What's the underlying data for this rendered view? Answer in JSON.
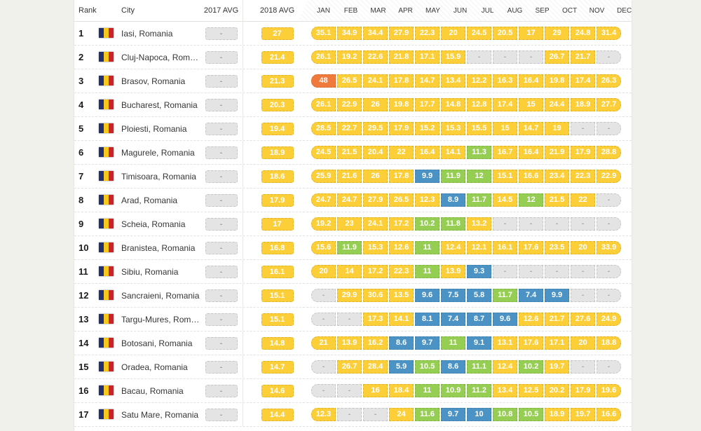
{
  "table": {
    "columns": {
      "rank": "Rank",
      "city": "City",
      "avg2017": "2017 AVG",
      "avg2018": "2018 AVG"
    },
    "months": [
      "JAN",
      "FEB",
      "MAR",
      "APR",
      "MAY",
      "JUN",
      "JUL",
      "AUG",
      "SEP",
      "OCT",
      "NOV",
      "DEC"
    ],
    "colors": {
      "yellow": "#fccf39",
      "green": "#95ce52",
      "blue": "#4a93c4",
      "orange": "#f0793c",
      "empty": "#e4e4e4"
    },
    "empty_label": "-",
    "rows": [
      {
        "rank": "1",
        "city": "Iasi, Romania",
        "avg2017": "-",
        "avg2018": "27",
        "cells": [
          [
            "35.1",
            "y"
          ],
          [
            "34.9",
            "y"
          ],
          [
            "34.4",
            "y"
          ],
          [
            "27.9",
            "y"
          ],
          [
            "22.3",
            "y"
          ],
          [
            "20",
            "y"
          ],
          [
            "24.5",
            "y"
          ],
          [
            "20.5",
            "y"
          ],
          [
            "17",
            "y"
          ],
          [
            "29",
            "y"
          ],
          [
            "24.8",
            "y"
          ],
          [
            "31.4",
            "y"
          ]
        ]
      },
      {
        "rank": "2",
        "city": "Cluj-Napoca, Roma...",
        "avg2017": "-",
        "avg2018": "21.4",
        "cells": [
          [
            "26.1",
            "y"
          ],
          [
            "19.2",
            "y"
          ],
          [
            "22.6",
            "y"
          ],
          [
            "21.8",
            "y"
          ],
          [
            "17.1",
            "y"
          ],
          [
            "15.9",
            "y"
          ],
          [
            "-",
            "e"
          ],
          [
            "-",
            "e"
          ],
          [
            "-",
            "e"
          ],
          [
            "26.7",
            "y"
          ],
          [
            "21.7",
            "y"
          ],
          [
            "-",
            "e"
          ]
        ]
      },
      {
        "rank": "3",
        "city": "Brasov, Romania",
        "avg2017": "-",
        "avg2018": "21.3",
        "cells": [
          [
            "48",
            "o"
          ],
          [
            "26.5",
            "y"
          ],
          [
            "24.1",
            "y"
          ],
          [
            "17.8",
            "y"
          ],
          [
            "14.7",
            "y"
          ],
          [
            "13.4",
            "y"
          ],
          [
            "12.2",
            "y"
          ],
          [
            "16.3",
            "y"
          ],
          [
            "16.4",
            "y"
          ],
          [
            "19.8",
            "y"
          ],
          [
            "17.4",
            "y"
          ],
          [
            "26.3",
            "y"
          ]
        ]
      },
      {
        "rank": "4",
        "city": "Bucharest, Romania",
        "avg2017": "-",
        "avg2018": "20.3",
        "cells": [
          [
            "26.1",
            "y"
          ],
          [
            "22.9",
            "y"
          ],
          [
            "26",
            "y"
          ],
          [
            "19.8",
            "y"
          ],
          [
            "17.7",
            "y"
          ],
          [
            "14.8",
            "y"
          ],
          [
            "12.8",
            "y"
          ],
          [
            "17.4",
            "y"
          ],
          [
            "15",
            "y"
          ],
          [
            "24.4",
            "y"
          ],
          [
            "18.9",
            "y"
          ],
          [
            "27.7",
            "y"
          ]
        ]
      },
      {
        "rank": "5",
        "city": "Ploiesti, Romania",
        "avg2017": "-",
        "avg2018": "19.4",
        "cells": [
          [
            "28.5",
            "y"
          ],
          [
            "22.7",
            "y"
          ],
          [
            "29.5",
            "y"
          ],
          [
            "17.9",
            "y"
          ],
          [
            "15.2",
            "y"
          ],
          [
            "15.3",
            "y"
          ],
          [
            "15.5",
            "y"
          ],
          [
            "15",
            "y"
          ],
          [
            "14.7",
            "y"
          ],
          [
            "19",
            "y"
          ],
          [
            "-",
            "e"
          ],
          [
            "-",
            "e"
          ]
        ]
      },
      {
        "rank": "6",
        "city": "Magurele, Romania",
        "avg2017": "-",
        "avg2018": "18.9",
        "cells": [
          [
            "24.5",
            "y"
          ],
          [
            "21.5",
            "y"
          ],
          [
            "20.4",
            "y"
          ],
          [
            "22",
            "y"
          ],
          [
            "16.4",
            "y"
          ],
          [
            "14.1",
            "y"
          ],
          [
            "11.3",
            "g"
          ],
          [
            "16.7",
            "y"
          ],
          [
            "16.4",
            "y"
          ],
          [
            "21.9",
            "y"
          ],
          [
            "17.9",
            "y"
          ],
          [
            "28.8",
            "y"
          ]
        ]
      },
      {
        "rank": "7",
        "city": "Timisoara, Romania",
        "avg2017": "-",
        "avg2018": "18.6",
        "cells": [
          [
            "25.9",
            "y"
          ],
          [
            "21.6",
            "y"
          ],
          [
            "26",
            "y"
          ],
          [
            "17.8",
            "y"
          ],
          [
            "9.9",
            "b"
          ],
          [
            "11.9",
            "g"
          ],
          [
            "12",
            "g"
          ],
          [
            "15.1",
            "y"
          ],
          [
            "16.6",
            "y"
          ],
          [
            "23.4",
            "y"
          ],
          [
            "22.3",
            "y"
          ],
          [
            "22.9",
            "y"
          ]
        ]
      },
      {
        "rank": "8",
        "city": "Arad, Romania",
        "avg2017": "-",
        "avg2018": "17.9",
        "cells": [
          [
            "24.7",
            "y"
          ],
          [
            "24.7",
            "y"
          ],
          [
            "27.9",
            "y"
          ],
          [
            "26.5",
            "y"
          ],
          [
            "12.3",
            "y"
          ],
          [
            "8.9",
            "b"
          ],
          [
            "11.7",
            "g"
          ],
          [
            "14.5",
            "y"
          ],
          [
            "12",
            "g"
          ],
          [
            "21.5",
            "y"
          ],
          [
            "22",
            "y"
          ],
          [
            "-",
            "e"
          ]
        ]
      },
      {
        "rank": "9",
        "city": "Scheia, Romania",
        "avg2017": "-",
        "avg2018": "17",
        "cells": [
          [
            "19.2",
            "y"
          ],
          [
            "23",
            "y"
          ],
          [
            "24.1",
            "y"
          ],
          [
            "17.2",
            "y"
          ],
          [
            "10.2",
            "g"
          ],
          [
            "11.8",
            "g"
          ],
          [
            "13.2",
            "y"
          ],
          [
            "-",
            "e"
          ],
          [
            "-",
            "e"
          ],
          [
            "-",
            "e"
          ],
          [
            "-",
            "e"
          ],
          [
            "-",
            "e"
          ]
        ]
      },
      {
        "rank": "10",
        "city": "Branistea, Romania",
        "avg2017": "-",
        "avg2018": "16.8",
        "cells": [
          [
            "15.6",
            "y"
          ],
          [
            "11.9",
            "g"
          ],
          [
            "15.3",
            "y"
          ],
          [
            "12.6",
            "y"
          ],
          [
            "11",
            "g"
          ],
          [
            "12.4",
            "y"
          ],
          [
            "12.1",
            "y"
          ],
          [
            "16.1",
            "y"
          ],
          [
            "17.6",
            "y"
          ],
          [
            "23.5",
            "y"
          ],
          [
            "20",
            "y"
          ],
          [
            "33.9",
            "y"
          ]
        ]
      },
      {
        "rank": "11",
        "city": "Sibiu, Romania",
        "avg2017": "-",
        "avg2018": "16.1",
        "cells": [
          [
            "20",
            "y"
          ],
          [
            "14",
            "y"
          ],
          [
            "17.2",
            "y"
          ],
          [
            "22.3",
            "y"
          ],
          [
            "11",
            "g"
          ],
          [
            "13.9",
            "y"
          ],
          [
            "9.3",
            "b"
          ],
          [
            "-",
            "e"
          ],
          [
            "-",
            "e"
          ],
          [
            "-",
            "e"
          ],
          [
            "-",
            "e"
          ],
          [
            "-",
            "e"
          ]
        ]
      },
      {
        "rank": "12",
        "city": "Sancraieni, Romania",
        "avg2017": "-",
        "avg2018": "15.1",
        "cells": [
          [
            "-",
            "e"
          ],
          [
            "29.9",
            "y"
          ],
          [
            "30.6",
            "y"
          ],
          [
            "13.5",
            "y"
          ],
          [
            "9.6",
            "b"
          ],
          [
            "7.5",
            "b"
          ],
          [
            "5.8",
            "b"
          ],
          [
            "11.7",
            "g"
          ],
          [
            "7.4",
            "b"
          ],
          [
            "9.9",
            "b"
          ],
          [
            "-",
            "e"
          ],
          [
            "-",
            "e"
          ]
        ]
      },
      {
        "rank": "13",
        "city": "Targu-Mures, Roma...",
        "avg2017": "-",
        "avg2018": "15.1",
        "cells": [
          [
            "-",
            "e"
          ],
          [
            "-",
            "e"
          ],
          [
            "17.3",
            "y"
          ],
          [
            "14.1",
            "y"
          ],
          [
            "8.1",
            "b"
          ],
          [
            "7.4",
            "b"
          ],
          [
            "8.7",
            "b"
          ],
          [
            "9.6",
            "b"
          ],
          [
            "12.6",
            "y"
          ],
          [
            "21.7",
            "y"
          ],
          [
            "27.6",
            "y"
          ],
          [
            "24.9",
            "y"
          ]
        ]
      },
      {
        "rank": "14",
        "city": "Botosani, Romania",
        "avg2017": "-",
        "avg2018": "14.8",
        "cells": [
          [
            "21",
            "y"
          ],
          [
            "13.9",
            "y"
          ],
          [
            "16.2",
            "y"
          ],
          [
            "8.6",
            "b"
          ],
          [
            "9.7",
            "b"
          ],
          [
            "11",
            "g"
          ],
          [
            "9.1",
            "b"
          ],
          [
            "13.1",
            "y"
          ],
          [
            "17.6",
            "y"
          ],
          [
            "17.1",
            "y"
          ],
          [
            "20",
            "y"
          ],
          [
            "18.8",
            "y"
          ]
        ]
      },
      {
        "rank": "15",
        "city": "Oradea, Romania",
        "avg2017": "-",
        "avg2018": "14.7",
        "cells": [
          [
            "-",
            "e"
          ],
          [
            "26.7",
            "y"
          ],
          [
            "28.4",
            "y"
          ],
          [
            "5.9",
            "b"
          ],
          [
            "10.5",
            "g"
          ],
          [
            "8.6",
            "b"
          ],
          [
            "11.1",
            "g"
          ],
          [
            "12.4",
            "y"
          ],
          [
            "10.2",
            "g"
          ],
          [
            "19.7",
            "y"
          ],
          [
            "-",
            "e"
          ],
          [
            "-",
            "e"
          ]
        ]
      },
      {
        "rank": "16",
        "city": "Bacau, Romania",
        "avg2017": "-",
        "avg2018": "14.6",
        "cells": [
          [
            "-",
            "e"
          ],
          [
            "-",
            "e"
          ],
          [
            "16",
            "y"
          ],
          [
            "18.4",
            "y"
          ],
          [
            "11",
            "g"
          ],
          [
            "10.9",
            "g"
          ],
          [
            "11.2",
            "g"
          ],
          [
            "13.4",
            "y"
          ],
          [
            "12.5",
            "y"
          ],
          [
            "20.2",
            "y"
          ],
          [
            "17.9",
            "y"
          ],
          [
            "19.6",
            "y"
          ]
        ]
      },
      {
        "rank": "17",
        "city": "Satu Mare, Romania",
        "avg2017": "-",
        "avg2018": "14.4",
        "cells": [
          [
            "12.3",
            "y"
          ],
          [
            "-",
            "e"
          ],
          [
            "-",
            "e"
          ],
          [
            "24",
            "y"
          ],
          [
            "11.6",
            "g"
          ],
          [
            "9.7",
            "b"
          ],
          [
            "10",
            "b"
          ],
          [
            "10.8",
            "g"
          ],
          [
            "10.5",
            "g"
          ],
          [
            "18.9",
            "y"
          ],
          [
            "19.7",
            "y"
          ],
          [
            "16.6",
            "y"
          ]
        ]
      }
    ]
  }
}
